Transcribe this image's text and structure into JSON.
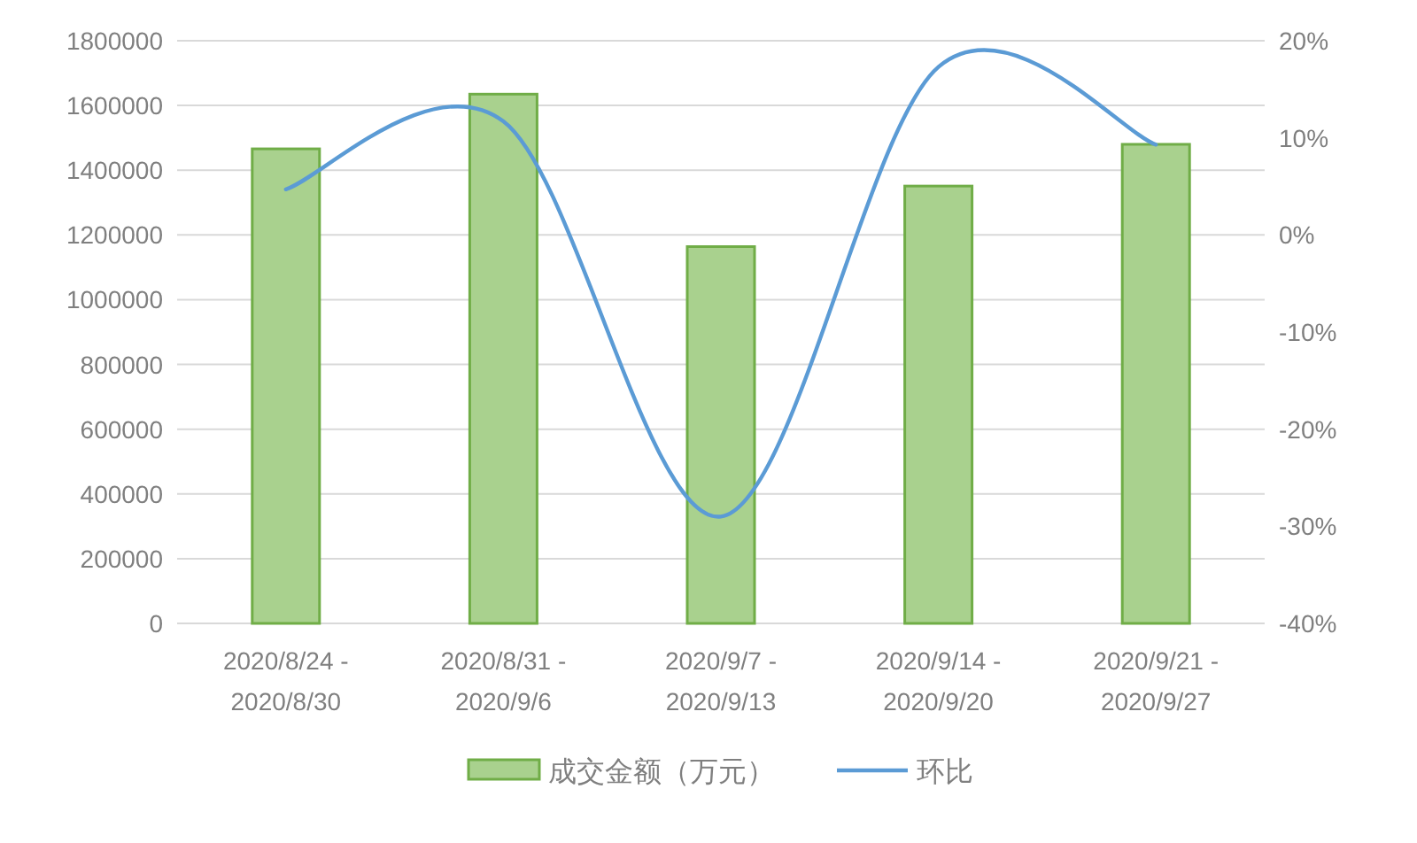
{
  "chart_data": {
    "type": "bar",
    "categories": [
      "2020/8/24 -\n2020/8/30",
      "2020/8/31 -\n2020/9/6",
      "2020/9/7 -\n2020/9/13",
      "2020/9/14 -\n2020/9/20",
      "2020/9/21 -\n2020/9/27"
    ],
    "series": [
      {
        "name": "成交金额（万元）",
        "color": "#a9d18e",
        "values": [
          1466000,
          1635000,
          1164000,
          1351000,
          1480000
        ]
      },
      {
        "name": "环比",
        "type": "line",
        "axis": "y2",
        "color": "#5b9bd5",
        "values": [
          4.7,
          11.7,
          -29,
          17.3,
          9.3
        ]
      }
    ],
    "ylim": [
      0,
      1800000
    ],
    "yticks": [
      0,
      200000,
      400000,
      600000,
      800000,
      1000000,
      1200000,
      1400000,
      1600000,
      1800000
    ],
    "y2lim": [
      -40,
      20
    ],
    "y2ticks": [
      {
        "value": -40,
        "label": "-40%"
      },
      {
        "value": -30,
        "label": "-30%"
      },
      {
        "value": -20,
        "label": "-20%"
      },
      {
        "value": -10,
        "label": "-10%"
      },
      {
        "value": 0,
        "label": "0%"
      },
      {
        "value": 10,
        "label": "10%"
      },
      {
        "value": 20,
        "label": "20%"
      }
    ],
    "grid": "y",
    "legend": "bottom"
  }
}
